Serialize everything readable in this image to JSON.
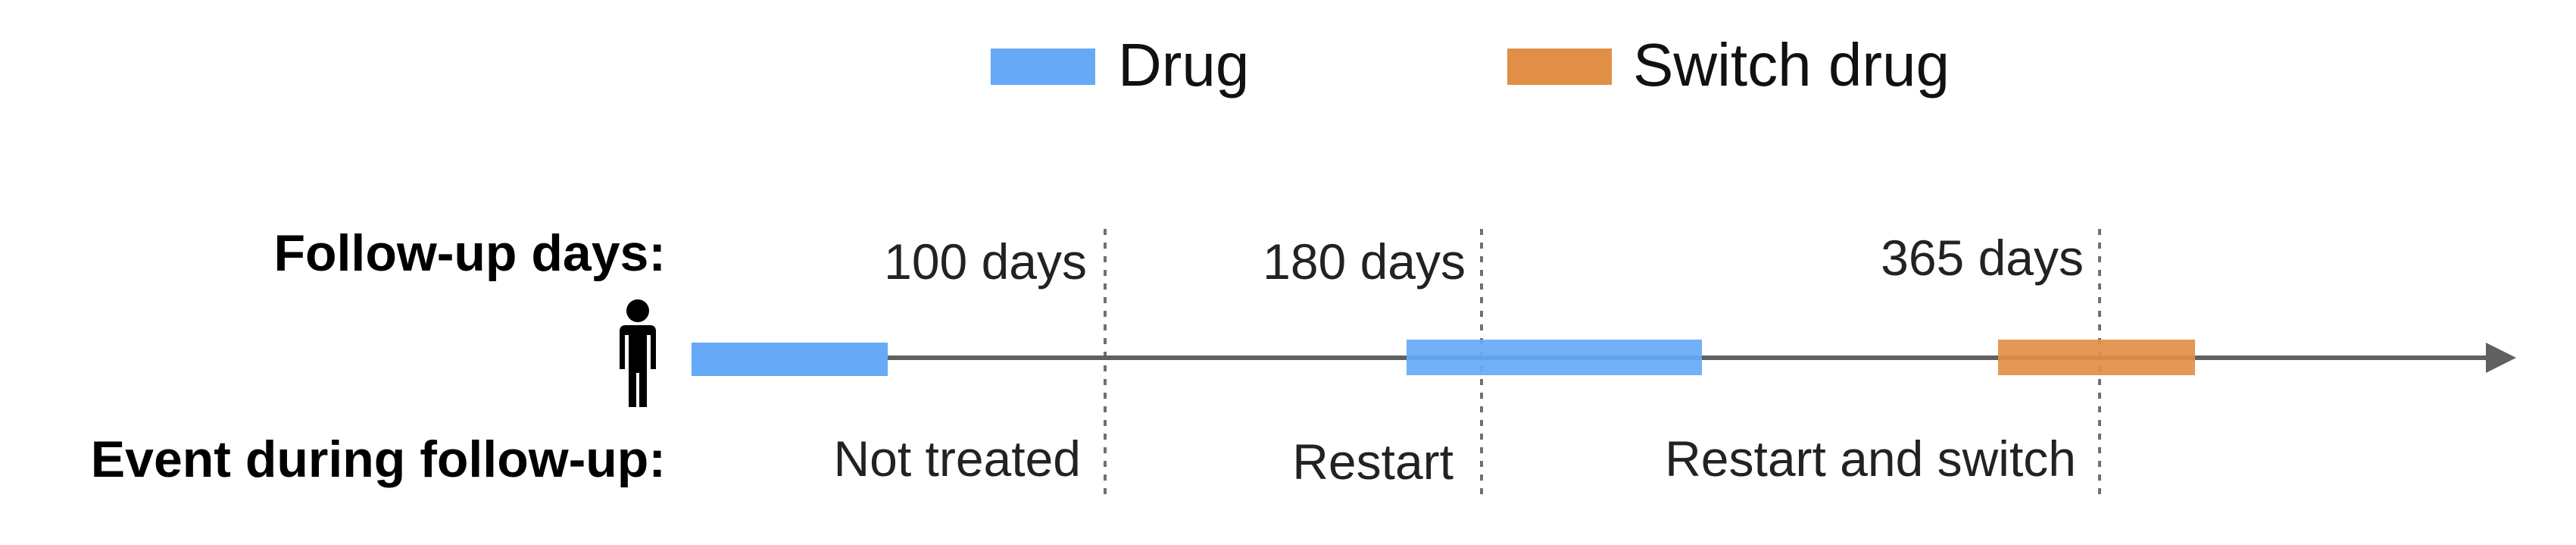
{
  "legend": {
    "items": [
      {
        "label": "Drug",
        "color": "#66A9F7"
      },
      {
        "label": "Switch drug",
        "color": "#E18F46"
      }
    ]
  },
  "rows": {
    "followup_label": "Follow-up days:",
    "event_label": "Event during follow-up:"
  },
  "markers": [
    {
      "label": "100 days",
      "day": 100
    },
    {
      "label": "180 days",
      "day": 180
    },
    {
      "label": "365 days",
      "day": 365
    }
  ],
  "events": [
    {
      "label": "Not treated"
    },
    {
      "label": "Restart"
    },
    {
      "label": "Restart and switch"
    }
  ],
  "colors": {
    "timeline": "#606060",
    "divider": "#707070",
    "drug": "#66A9F7",
    "switch_drug": "#E18F46"
  },
  "icons": {
    "patient": "person-icon"
  }
}
